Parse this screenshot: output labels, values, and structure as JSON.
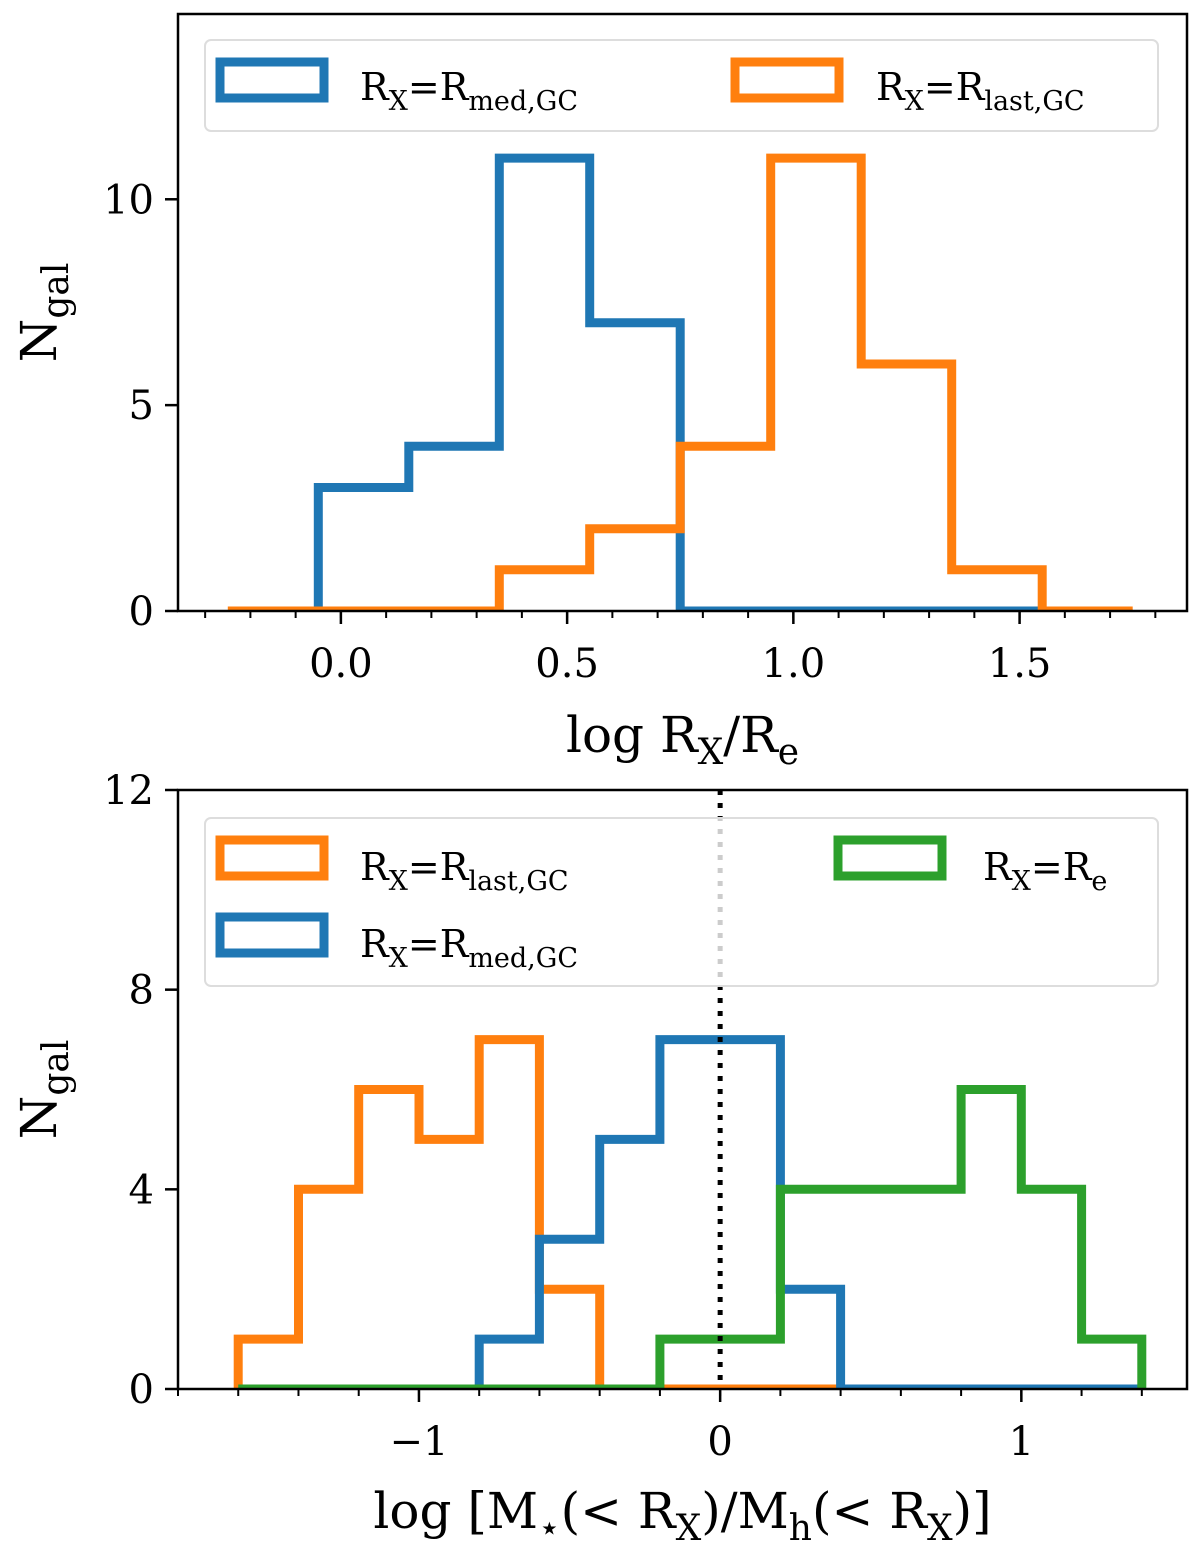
{
  "chart_data": [
    {
      "type": "histogram",
      "panel": "top",
      "xlabel": "log R_X/R_e",
      "ylabel": "N_gal",
      "xlim": [
        -0.36,
        1.87
      ],
      "ylim": [
        0,
        14.5
      ],
      "xticks": [
        0.0,
        0.5,
        1.0,
        1.5
      ],
      "xtick_labels": [
        "0.0",
        "0.5",
        "1.0",
        "1.5"
      ],
      "yticks": [
        0,
        5,
        10
      ],
      "ytick_labels": [
        "0",
        "5",
        "10"
      ],
      "legend_placement": "top",
      "series": [
        {
          "name": "R_X=R_med,GC",
          "label_main": "R",
          "label_sub1": "X",
          "label_mid": "=R",
          "label_sub2": "med,GC",
          "color": "#1f77b4",
          "bin_edges": [
            -0.05,
            0.15,
            0.35,
            0.55,
            0.75,
            0.95,
            1.15,
            1.35,
            1.55
          ],
          "counts": [
            3,
            4,
            11,
            7,
            0,
            0,
            0,
            0
          ]
        },
        {
          "name": "R_X=R_last,GC",
          "label_main": "R",
          "label_sub1": "X",
          "label_mid": "=R",
          "label_sub2": "last,GC",
          "color": "#ff7f0e",
          "bin_edges": [
            -0.25,
            -0.05,
            0.15,
            0.35,
            0.55,
            0.75,
            0.95,
            1.15,
            1.35,
            1.55,
            1.75
          ],
          "counts": [
            0,
            0,
            0,
            1,
            2,
            4,
            11,
            6,
            1,
            0
          ]
        }
      ]
    },
    {
      "type": "histogram",
      "panel": "bottom",
      "xlabel": "log [M_⋆(< R_X)/M_h(< R_X)]",
      "ylabel": "N_gal",
      "xlim": [
        -1.8,
        1.55
      ],
      "ylim": [
        0,
        12
      ],
      "xticks": [
        -1,
        0,
        1
      ],
      "xtick_labels": [
        "−1",
        "0",
        "1"
      ],
      "yticks": [
        0,
        4,
        8,
        12
      ],
      "ytick_labels": [
        "0",
        "4",
        "8",
        "12"
      ],
      "vline_x": 0,
      "legend_placement": "top",
      "series": [
        {
          "name": "R_X=R_last,GC",
          "label_main": "R",
          "label_sub1": "X",
          "label_mid": "=R",
          "label_sub2": "last,GC",
          "color": "#ff7f0e",
          "bin_edges": [
            -1.6,
            -1.4,
            -1.2,
            -1.0,
            -0.8,
            -0.6,
            -0.4,
            -0.2,
            0.0,
            0.2,
            0.4
          ],
          "counts": [
            1,
            4,
            6,
            5,
            7,
            2,
            0,
            0,
            0,
            0
          ]
        },
        {
          "name": "R_X=R_med,GC",
          "label_main": "R",
          "label_sub1": "X",
          "label_mid": "=R",
          "label_sub2": "med,GC",
          "color": "#1f77b4",
          "bin_edges": [
            -0.8,
            -0.6,
            -0.4,
            -0.2,
            0.0,
            0.2,
            0.4,
            0.6,
            0.8,
            1.0,
            1.2,
            1.4
          ],
          "counts": [
            1,
            3,
            5,
            7,
            7,
            2,
            0,
            0,
            0,
            0,
            0
          ]
        },
        {
          "name": "R_X=R_e",
          "label_main": "R",
          "label_sub1": "X",
          "label_mid": "=R",
          "label_sub2": "e",
          "color": "#2ca02c",
          "bin_edges": [
            -1.6,
            -1.4,
            -1.2,
            -1.0,
            -0.8,
            -0.6,
            -0.4,
            -0.2,
            0.0,
            0.2,
            0.4,
            0.6,
            0.8,
            1.0,
            1.2,
            1.4
          ],
          "counts": [
            0,
            0,
            0,
            0,
            0,
            0,
            0,
            1,
            1,
            4,
            4,
            4,
            6,
            4,
            1
          ]
        }
      ]
    }
  ]
}
